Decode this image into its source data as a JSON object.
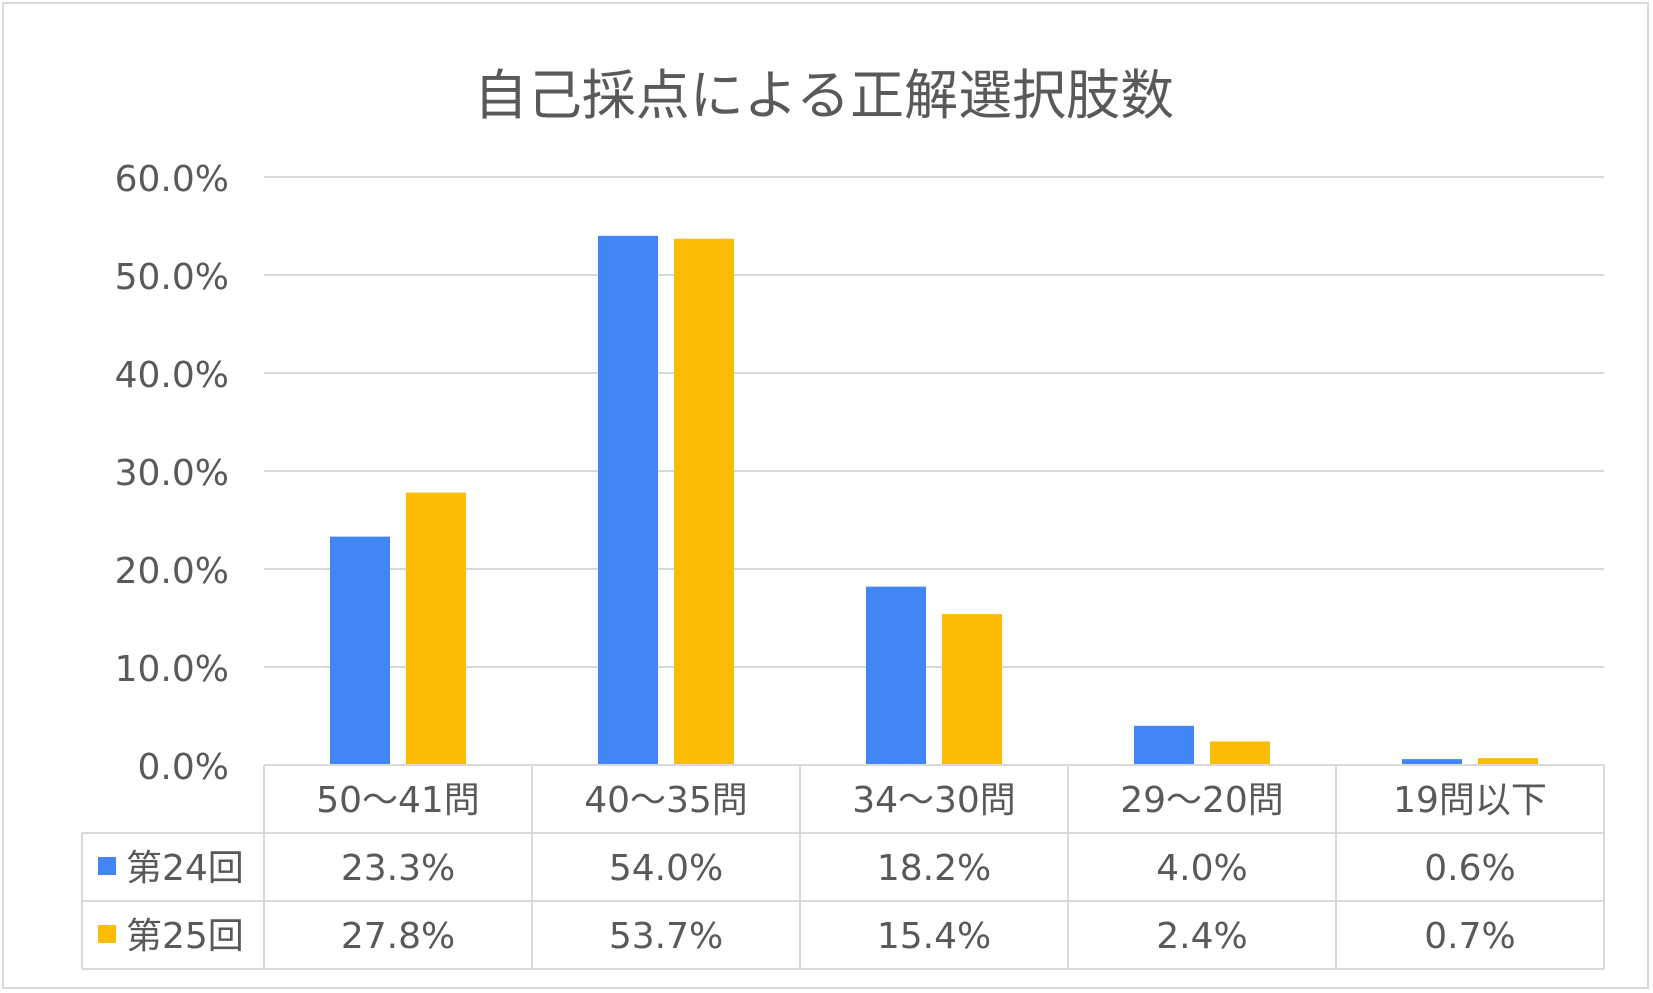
{
  "chart_data": {
    "type": "bar",
    "title": "自己採点による正解選択肢数",
    "categories": [
      "50～41問",
      "40～35問",
      "34～30問",
      "29～20問",
      "19問以下"
    ],
    "series": [
      {
        "name": "第24回",
        "color": "#4285f4",
        "values": [
          23.3,
          54.0,
          18.2,
          4.0,
          0.6
        ],
        "labels": [
          "23.3%",
          "54.0%",
          "18.2%",
          "4.0%",
          "0.6%"
        ]
      },
      {
        "name": "第25回",
        "color": "#fbbc04",
        "values": [
          27.8,
          53.7,
          15.4,
          2.4,
          0.7
        ],
        "labels": [
          "27.8%",
          "53.7%",
          "15.4%",
          "2.4%",
          "0.7%"
        ]
      }
    ],
    "yticks": [
      "0.0%",
      "10.0%",
      "20.0%",
      "30.0%",
      "40.0%",
      "50.0%",
      "60.0%"
    ],
    "ylim": [
      0,
      60
    ],
    "grid": true,
    "legend": "data-table"
  }
}
